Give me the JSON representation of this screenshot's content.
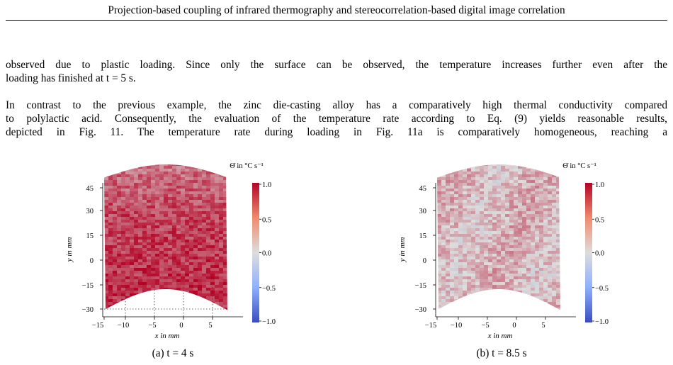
{
  "header": {
    "running_title": "Projection-based coupling of infrared thermography and stereocorrelation-based digital image correlation"
  },
  "body": {
    "paragraph1": {
      "lines": [
        "observed due to plastic loading. Since only the surface can be observed, the temperature increases further even after the",
        "loading has finished at t = 5 s."
      ]
    },
    "paragraph2": {
      "lines": [
        "In contrast to the previous example, the zinc die-casting alloy has a comparatively high thermal conductivity compared",
        "to polylactic acid. Consequently, the evaluation of the temperature rate according to Eq. (9) yields reasonable results,",
        "depicted in Fig. 11. The temperature rate during loading in Fig. 11a is comparatively homogeneous, reaching a"
      ]
    }
  },
  "figure": {
    "colors": {
      "neg_end": "#3b4cc0",
      "neutral": "#dddddd",
      "pos_end": "#b40426"
    },
    "panels": [
      {
        "caption": "(a) t = 4 s",
        "colorbar_title": "Θ̇ in °C s⁻¹",
        "xlabel": "x in mm",
        "ylabel": "y in mm",
        "xticks": [
          "−15",
          "−10",
          "−5",
          "0",
          "5"
        ],
        "yticks": [
          "45",
          "30",
          "15",
          "0",
          "−15",
          "−30"
        ],
        "cbar_ticks": [
          "1.0",
          "0.5",
          "0.0",
          "−0.5",
          "−1.0"
        ],
        "mean_rate": 0.62,
        "pattern": "strong"
      },
      {
        "caption": "(b) t = 8.5 s",
        "colorbar_title": "Θ̇ in °C s⁻¹",
        "xlabel": "x in mm",
        "ylabel": "y in mm",
        "xticks": [
          "−15",
          "−10",
          "−5",
          "0",
          "5"
        ],
        "yticks": [
          "45",
          "30",
          "15",
          "0",
          "−15",
          "−30"
        ],
        "cbar_ticks": [
          "1.0",
          "0.5",
          "0.0",
          "−0.5",
          "−1.0"
        ],
        "mean_rate": 0.18,
        "pattern": "weak"
      }
    ]
  }
}
